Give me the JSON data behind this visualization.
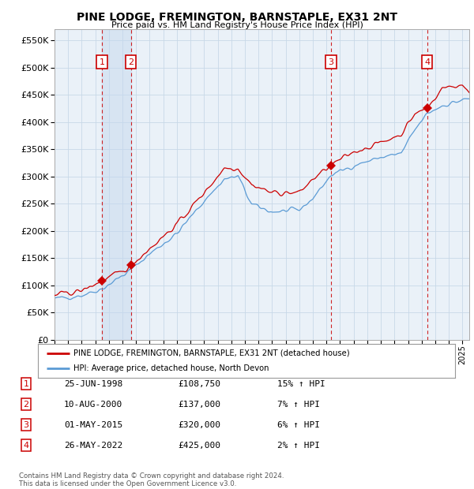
{
  "title": "PINE LODGE, FREMINGTON, BARNSTAPLE, EX31 2NT",
  "subtitle": "Price paid vs. HM Land Registry's House Price Index (HPI)",
  "ylim": [
    0,
    570000
  ],
  "yticks": [
    0,
    50000,
    100000,
    150000,
    200000,
    250000,
    300000,
    350000,
    400000,
    450000,
    500000,
    550000
  ],
  "xlim_start": 1995.0,
  "xlim_end": 2025.5,
  "sale_dates": [
    1998.48,
    2000.61,
    2015.33,
    2022.4
  ],
  "sale_prices": [
    108750,
    137000,
    320000,
    425000
  ],
  "sale_labels": [
    "1",
    "2",
    "3",
    "4"
  ],
  "legend_entry1": "PINE LODGE, FREMINGTON, BARNSTAPLE, EX31 2NT (detached house)",
  "legend_entry2": "HPI: Average price, detached house, North Devon",
  "table_rows": [
    [
      "1",
      "25-JUN-1998",
      "£108,750",
      "15% ↑ HPI"
    ],
    [
      "2",
      "10-AUG-2000",
      "£137,000",
      "7% ↑ HPI"
    ],
    [
      "3",
      "01-MAY-2015",
      "£320,000",
      "6% ↑ HPI"
    ],
    [
      "4",
      "26-MAY-2022",
      "£425,000",
      "2% ↑ HPI"
    ]
  ],
  "footer": "Contains HM Land Registry data © Crown copyright and database right 2024.\nThis data is licensed under the Open Government Licence v3.0.",
  "red_color": "#cc0000",
  "blue_color": "#5b9bd5",
  "blue_fill": "#dce9f5",
  "bg_color": "#eaf1f8",
  "grid_color": "#c8d8e8"
}
